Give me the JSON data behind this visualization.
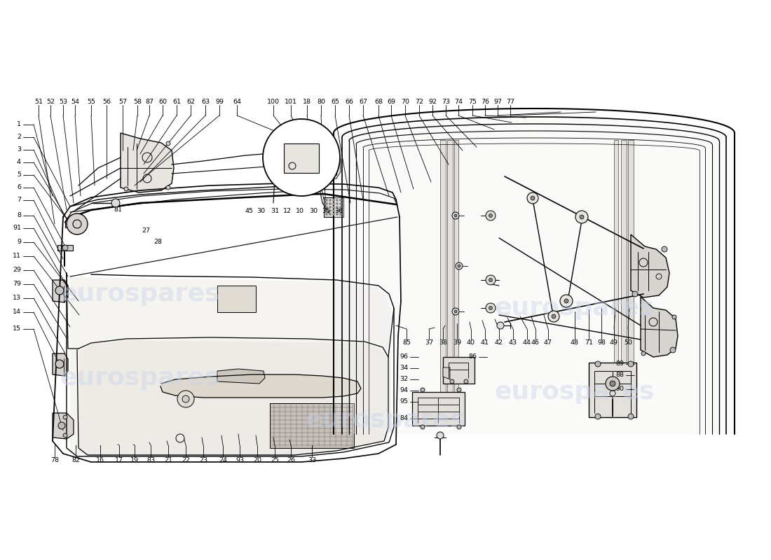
{
  "bg": "#ffffff",
  "lc": "#000000",
  "wm_color": "#c8d4e8",
  "wm_alpha": 0.45,
  "font_size_label": 6.8,
  "top_row": [
    [
      55,
      145,
      "51"
    ],
    [
      72,
      145,
      "52"
    ],
    [
      90,
      145,
      "53"
    ],
    [
      107,
      145,
      "54"
    ],
    [
      130,
      145,
      "55"
    ],
    [
      152,
      145,
      "56"
    ],
    [
      175,
      145,
      "57"
    ],
    [
      196,
      145,
      "58"
    ],
    [
      213,
      145,
      "87"
    ],
    [
      232,
      145,
      "60"
    ],
    [
      252,
      145,
      "61"
    ],
    [
      272,
      145,
      "62"
    ],
    [
      293,
      145,
      "63"
    ],
    [
      313,
      145,
      "99"
    ],
    [
      338,
      145,
      "64"
    ],
    [
      390,
      145,
      "100"
    ],
    [
      415,
      145,
      "101"
    ],
    [
      438,
      145,
      "18"
    ],
    [
      458,
      145,
      "80"
    ],
    [
      478,
      145,
      "65"
    ],
    [
      498,
      145,
      "66"
    ],
    [
      518,
      145,
      "67"
    ],
    [
      540,
      145,
      "68"
    ],
    [
      558,
      145,
      "69"
    ],
    [
      578,
      145,
      "70"
    ],
    [
      598,
      145,
      "72"
    ],
    [
      617,
      145,
      "92"
    ],
    [
      636,
      145,
      "73"
    ],
    [
      654,
      145,
      "74"
    ],
    [
      674,
      145,
      "75"
    ],
    [
      692,
      145,
      "76"
    ],
    [
      710,
      145,
      "97"
    ],
    [
      728,
      145,
      "77"
    ]
  ],
  "left_row": [
    [
      30,
      178,
      "1"
    ],
    [
      30,
      196,
      "2"
    ],
    [
      30,
      214,
      "3"
    ],
    [
      30,
      232,
      "4"
    ],
    [
      30,
      250,
      "5"
    ],
    [
      30,
      268,
      "6"
    ],
    [
      30,
      286,
      "7"
    ],
    [
      30,
      308,
      "8"
    ],
    [
      30,
      326,
      "91"
    ],
    [
      30,
      346,
      "9"
    ],
    [
      30,
      366,
      "11"
    ],
    [
      30,
      386,
      "29"
    ],
    [
      30,
      406,
      "79"
    ],
    [
      30,
      426,
      "13"
    ],
    [
      30,
      446,
      "14"
    ],
    [
      30,
      470,
      "15"
    ]
  ],
  "bottom_row": [
    [
      78,
      658,
      "78"
    ],
    [
      108,
      658,
      "82"
    ],
    [
      143,
      658,
      "16"
    ],
    [
      170,
      658,
      "17"
    ],
    [
      192,
      658,
      "19"
    ],
    [
      215,
      658,
      "83"
    ],
    [
      240,
      658,
      "21"
    ],
    [
      265,
      658,
      "22"
    ],
    [
      290,
      658,
      "23"
    ],
    [
      318,
      658,
      "24"
    ],
    [
      342,
      658,
      "93"
    ],
    [
      367,
      658,
      "20"
    ],
    [
      392,
      658,
      "25"
    ],
    [
      415,
      658,
      "26"
    ],
    [
      445,
      658,
      "33"
    ]
  ],
  "mid_right_row": [
    [
      580,
      490,
      "85"
    ],
    [
      612,
      490,
      "37"
    ],
    [
      632,
      490,
      "38"
    ],
    [
      652,
      490,
      "39"
    ],
    [
      672,
      490,
      "40"
    ],
    [
      692,
      490,
      "41"
    ],
    [
      712,
      490,
      "42"
    ],
    [
      732,
      490,
      "43"
    ],
    [
      752,
      490,
      "44"
    ],
    [
      764,
      490,
      "46"
    ],
    [
      782,
      490,
      "47"
    ],
    [
      820,
      490,
      "48"
    ],
    [
      840,
      490,
      "71"
    ],
    [
      858,
      490,
      "98"
    ],
    [
      876,
      490,
      "49"
    ],
    [
      896,
      490,
      "50"
    ]
  ],
  "br_labels": [
    [
      582,
      510,
      "96"
    ],
    [
      582,
      526,
      "34"
    ],
    [
      582,
      542,
      "32"
    ],
    [
      582,
      558,
      "94"
    ],
    [
      582,
      574,
      "95"
    ],
    [
      582,
      598,
      "84"
    ],
    [
      680,
      510,
      "86"
    ],
    [
      890,
      520,
      "89"
    ],
    [
      890,
      536,
      "88"
    ],
    [
      890,
      556,
      "90"
    ]
  ],
  "misc_labels": [
    [
      208,
      330,
      "27"
    ],
    [
      225,
      346,
      "28"
    ],
    [
      168,
      300,
      "81"
    ],
    [
      355,
      302,
      "45"
    ],
    [
      372,
      302,
      "30"
    ],
    [
      392,
      302,
      "31"
    ],
    [
      410,
      302,
      "12"
    ],
    [
      428,
      302,
      "10"
    ],
    [
      447,
      302,
      "30"
    ],
    [
      465,
      302,
      "35"
    ],
    [
      483,
      302,
      "36"
    ]
  ]
}
